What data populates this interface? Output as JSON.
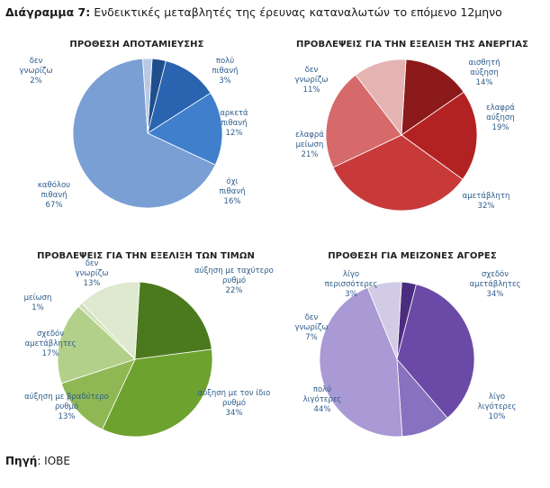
{
  "figure": {
    "title_bold": "Διάγραμμα 7:",
    "title_rest": " Ενδεικτικές μεταβλητές της έρευνας καταναλωτών το επόμενο 12μηνο",
    "source_bold": "Πηγή",
    "source_rest": ": ΙΟΒΕ"
  },
  "chart_data": [
    {
      "type": "pie",
      "title": "ΠΡΟΘΕΣΗ ΑΠΟΤΑΜΙΕΥΣΗΣ",
      "slices": [
        {
          "label": "πολύ πιθανή",
          "value": 3,
          "color": "#1f4e8c"
        },
        {
          "label": "αρκετά πιθανή",
          "value": 12,
          "color": "#2a63b0"
        },
        {
          "label": "όχι πιθανή",
          "value": 16,
          "color": "#3f7fcc"
        },
        {
          "label": "καθόλου πιθανή",
          "value": 67,
          "color": "#7a9fd4"
        },
        {
          "label": "δεν γνωρίζω",
          "value": 2,
          "color": "#b8c9e6"
        }
      ]
    },
    {
      "type": "pie",
      "title": "ΠΡΟΒΛΕΨΕΙΣ ΓΙΑ ΤΗΝ ΕΞΕΛΙΞΗ ΤΗΣ ΑΝΕΡΓΙΑΣ",
      "slices": [
        {
          "label": "αισθητή αύξηση",
          "value": 14,
          "color": "#8c1a1a"
        },
        {
          "label": "ελαφρά αύξηση",
          "value": 19,
          "color": "#b22222"
        },
        {
          "label": "αμετάβλητη",
          "value": 32,
          "color": "#c83a3a"
        },
        {
          "label": "ελαφρά μείωση",
          "value": 21,
          "color": "#d66a6a"
        },
        {
          "label": "δεν γνωρίζω",
          "value": 11,
          "color": "#e6b3b3"
        }
      ]
    },
    {
      "type": "pie",
      "title": "ΠΡΟΒΛΕΨΕΙΣ ΓΙΑ ΤΗΝ ΕΞΕΛΙΞΗ ΤΩΝ ΤΙΜΩΝ",
      "slices": [
        {
          "label": "αύξηση με ταχύτερο ρυθμό",
          "value": 22,
          "color": "#4b7a1e"
        },
        {
          "label": "αύξηση με τον ίδιο ρυθμό",
          "value": 34,
          "color": "#6ea22e"
        },
        {
          "label": "αύξηση με βραδύτερο ρυθμό",
          "value": 13,
          "color": "#8fb855"
        },
        {
          "label": "σχεδόν αμετάβλητες",
          "value": 17,
          "color": "#b3d08a"
        },
        {
          "label": "μείωση",
          "value": 1,
          "color": "#cfe0b5"
        },
        {
          "label": "δεν γνωρίζω",
          "value": 13,
          "color": "#dfe9d0"
        }
      ]
    },
    {
      "type": "pie",
      "title": "ΠΡΟΘΕΣΗ ΓΙΑ ΜΕΙΖΟΝΕΣ ΑΓΟΡΕΣ",
      "slices": [
        {
          "label": "λίγο περισσότερες",
          "value": 3,
          "color": "#4b2d80"
        },
        {
          "label": "σχεδόν αμετάβλητες",
          "value": 34,
          "color": "#6a4aa6"
        },
        {
          "label": "λίγο λιγότερες",
          "value": 10,
          "color": "#8872bf"
        },
        {
          "label": "πολύ λιγότερες",
          "value": 44,
          "color": "#a999d4"
        },
        {
          "label": "δεν γνωρίζω",
          "value": 7,
          "color": "#d2cbe6"
        }
      ]
    }
  ]
}
